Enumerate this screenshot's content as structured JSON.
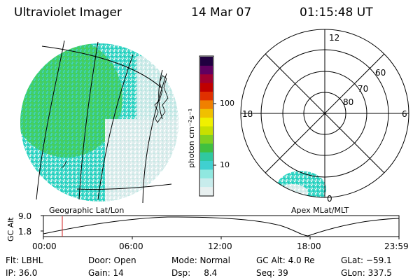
{
  "header": {
    "title": "Ultraviolet Imager",
    "date": "14 Mar 07",
    "time": "01:15:48 UT"
  },
  "colorbar": {
    "unit_label": "photon cm⁻²s⁻¹",
    "tick_100": "100",
    "tick_10": "10",
    "colors": [
      "#e8f0f0",
      "#c8ecec",
      "#90e8e0",
      "#40d0d0",
      "#30c8a0",
      "#40c040",
      "#80d020",
      "#c8e000",
      "#f0f000",
      "#f0c000",
      "#f08000",
      "#e03000",
      "#c00000",
      "#a00030",
      "#600060",
      "#200040"
    ]
  },
  "left_map": {
    "caption": "Geographic Lat/Lon"
  },
  "right_polar": {
    "caption": "Apex MLat/MLT",
    "mlt_labels": {
      "top": "12",
      "left": "18",
      "right": "6",
      "bottom": "0"
    },
    "lat_labels": [
      "60",
      "70",
      "80"
    ]
  },
  "altitude_plot": {
    "ylabel": "GC Alt",
    "y_ticks": [
      "9.0",
      "1.8"
    ],
    "x_ticks": [
      "00:00",
      "06:00",
      "12:00",
      "18:00",
      "23:59"
    ],
    "marker_time": "01:15:48",
    "marker_color": "#d02020"
  },
  "status": {
    "row1": [
      {
        "key": "flt",
        "text": "Flt: LBHL"
      },
      {
        "key": "door",
        "text": "Door: Open"
      },
      {
        "key": "mode",
        "text": "Mode: Normal"
      },
      {
        "key": "gcalt",
        "text": "GC Alt: 4.0 Re"
      },
      {
        "key": "glat",
        "text": "GLat: −59.1"
      }
    ],
    "row2": [
      {
        "key": "ip",
        "text": "IP: 36.0"
      },
      {
        "key": "gain",
        "text": "Gain: 14"
      },
      {
        "key": "dsp",
        "text": "Dsp:     8.4"
      },
      {
        "key": "seq",
        "text": "Seq: 39"
      },
      {
        "key": "glon",
        "text": "GLon: 337.5"
      }
    ]
  }
}
